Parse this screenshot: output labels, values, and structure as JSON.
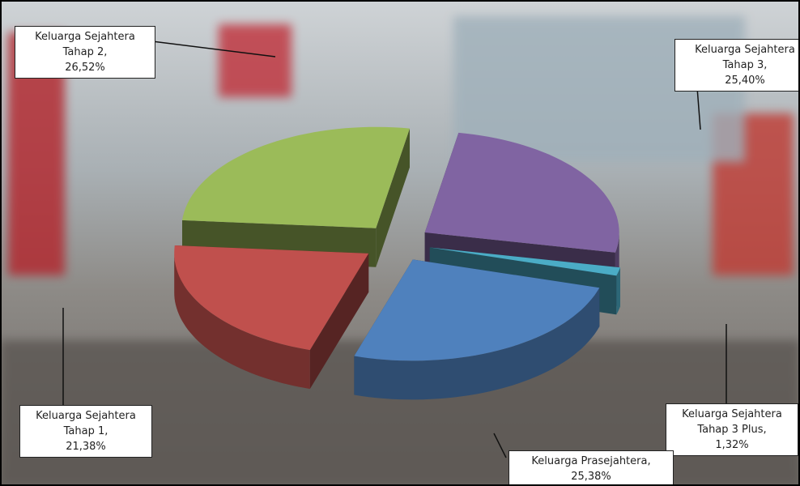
{
  "chart_data": {
    "type": "pie3d",
    "categories": [
      "Keluarga Sejahtera Tahap 3",
      "Keluarga Sejahtera Tahap 3 Plus",
      "Keluarga Prasejahtera",
      "Keluarga Sejahtera Tahap 1",
      "Keluarga Sejahtera Tahap 2"
    ],
    "values": [
      25.4,
      1.32,
      25.38,
      21.38,
      26.52
    ],
    "value_labels": [
      "25,40%",
      "1,32%",
      "25,38%",
      "21,38%",
      "26,52%"
    ],
    "colors": [
      "#8064a2",
      "#4bacc6",
      "#4f81bd",
      "#c0504d",
      "#9bbb59"
    ]
  }
}
